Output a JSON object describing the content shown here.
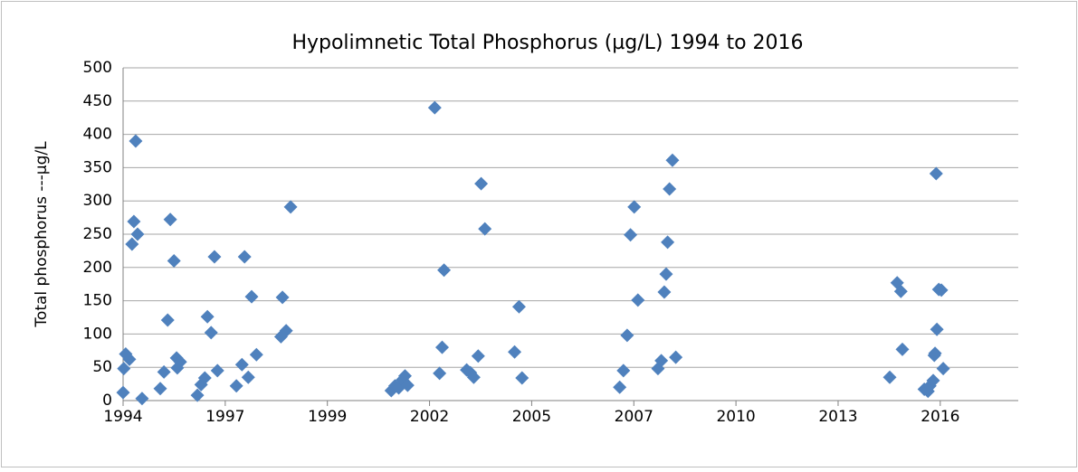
{
  "chart_data": {
    "type": "scatter",
    "title": "Hypolimnetic Total Phosphorus (µg/L) 1994 to 2016",
    "y_label": "Total phosphorus ---µg/L",
    "series": [
      {
        "name": "Total phosphorus",
        "color": "#4f81bd",
        "x": [
          1994.0,
          1994.02,
          1994.07,
          1994.17,
          1994.24,
          1994.29,
          1994.34,
          1994.39,
          1994.51,
          1995.0,
          1995.1,
          1995.2,
          1995.27,
          1995.37,
          1995.44,
          1995.46,
          1995.54,
          1996.0,
          1996.1,
          1996.2,
          1996.27,
          1996.37,
          1996.46,
          1996.54,
          1997.05,
          1997.2,
          1997.27,
          1997.37,
          1997.46,
          1997.59,
          1998.25,
          1998.29,
          1998.39,
          1998.51,
          2001.22,
          2001.32,
          2001.42,
          2001.52,
          2001.59,
          2001.66,
          2002.39,
          2002.52,
          2002.59,
          2002.64,
          2003.25,
          2003.35,
          2003.44,
          2003.56,
          2003.64,
          2003.74,
          2004.54,
          2004.66,
          2004.74,
          2007.37,
          2007.47,
          2007.57,
          2007.66,
          2007.76,
          2007.86,
          2008.4,
          2008.49,
          2008.57,
          2008.62,
          2008.66,
          2008.71,
          2008.79,
          2008.88,
          2014.64,
          2014.84,
          2014.94,
          2014.98,
          2015.57,
          2015.67,
          2015.72,
          2015.81,
          2015.84,
          2015.86,
          2015.89,
          2015.91,
          2015.96,
          2016.03,
          2016.08
        ],
        "values": [
          12,
          48,
          70,
          62,
          235,
          269,
          390,
          250,
          3,
          18,
          43,
          121,
          272,
          210,
          64,
          49,
          58,
          8,
          24,
          34,
          126,
          102,
          216,
          45,
          22,
          54,
          216,
          35,
          156,
          69,
          96,
          155,
          105,
          291,
          15,
          22,
          19,
          31,
          37,
          23,
          440,
          41,
          80,
          196,
          46,
          42,
          35,
          67,
          326,
          258,
          73,
          141,
          34,
          20,
          45,
          98,
          249,
          291,
          151,
          48,
          60,
          163,
          190,
          238,
          318,
          361,
          65,
          35,
          177,
          164,
          77,
          17,
          14,
          22,
          30,
          68,
          71,
          341,
          107,
          167,
          166,
          48
        ]
      }
    ],
    "xlim": [
      1994,
      2018.1
    ],
    "xticks": [
      {
        "value": 1994,
        "label": "1994"
      },
      {
        "value": 1996.75,
        "label": "1997"
      },
      {
        "value": 1999.5,
        "label": "1999"
      },
      {
        "value": 2002.25,
        "label": "2002"
      },
      {
        "value": 2005,
        "label": "2005"
      },
      {
        "value": 2007.75,
        "label": "2007"
      },
      {
        "value": 2010.5,
        "label": "2010"
      },
      {
        "value": 2013.25,
        "label": "2013"
      },
      {
        "value": 2016,
        "label": "2016"
      }
    ],
    "ylim": [
      0,
      500
    ],
    "yticks": [
      0,
      50,
      100,
      150,
      200,
      250,
      300,
      350,
      400,
      450,
      500
    ],
    "grid": true
  }
}
